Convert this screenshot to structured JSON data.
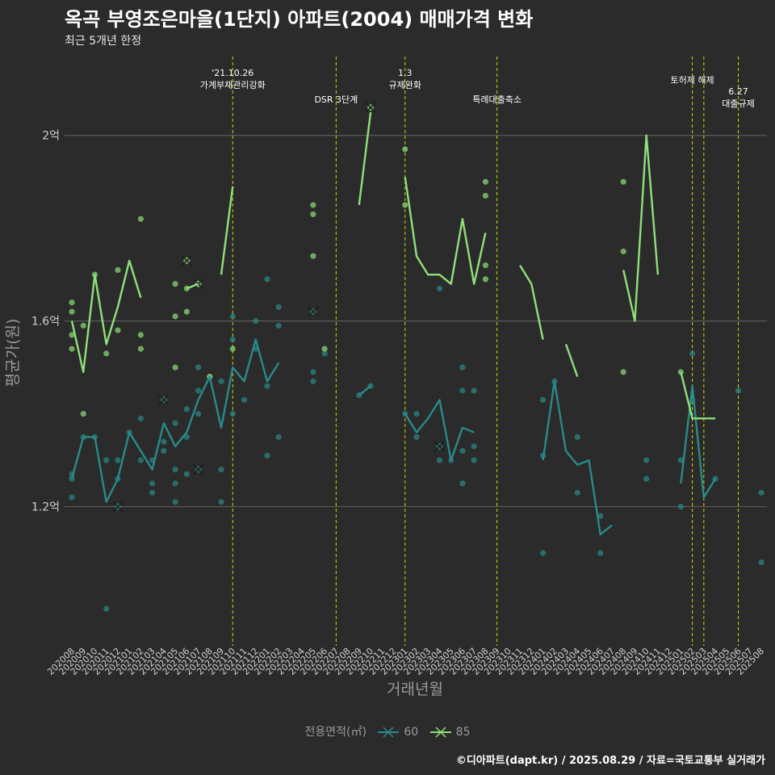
{
  "title": "옥곡 부영조은마을(1단지) 아파트(2004) 매매가격 변화",
  "subtitle": "최근 5개년 한정",
  "caption": "©디아파트(dapt.kr) / 2025.08.29 / 자료=국토교통부 실거래가",
  "colors": {
    "background": "#2b2b2b",
    "grid": "#5a5a5a",
    "event_line": "#d4d400",
    "s60": "#2a8a8a",
    "s85": "#8ee07a"
  },
  "chart_data": {
    "type": "line",
    "xlabel": "거래년월",
    "ylabel": "평균가(원)",
    "y_ticks": [
      {
        "value": 1.2,
        "label": "1.2억"
      },
      {
        "value": 1.6,
        "label": "1.6억"
      },
      {
        "value": 2.0,
        "label": "2억"
      }
    ],
    "ylim": [
      0.9,
      2.17
    ],
    "grid": true,
    "legend_title": "전용면적(㎡)",
    "legend_position": "bottom",
    "categories": [
      "202008",
      "202009",
      "202010",
      "202011",
      "202012",
      "202101",
      "202102",
      "202103",
      "202104",
      "202105",
      "202106",
      "202107",
      "202108",
      "202109",
      "202110",
      "202111",
      "202112",
      "202201",
      "202202",
      "202203",
      "202204",
      "202205",
      "202206",
      "202207",
      "202208",
      "202209",
      "202210",
      "202211",
      "202212",
      "202301",
      "202302",
      "202303",
      "202304",
      "202305",
      "202306",
      "202307",
      "202308",
      "202309",
      "202310",
      "202311",
      "202312",
      "202401",
      "202402",
      "202403",
      "202404",
      "202405",
      "202406",
      "202407",
      "202408",
      "202409",
      "202410",
      "202411",
      "202412",
      "202501",
      "202502",
      "202503",
      "202504",
      "202505",
      "202506",
      "202507",
      "202508"
    ],
    "events": [
      {
        "x": "202110",
        "label": "'21.10.26\n가계부채관리강화"
      },
      {
        "x": "202207",
        "label": "DSR 3단계"
      },
      {
        "x": "202301",
        "label": "1.3\n규제완화"
      },
      {
        "x": "202309",
        "label": "특례대출축소"
      },
      {
        "x": "202502",
        "label": "토허제 해제"
      },
      {
        "x": "202503",
        "label": ""
      },
      {
        "x": "202506",
        "label": "6.27\n대출규제"
      }
    ],
    "series": [
      {
        "name": "60",
        "line": [
          1.26,
          1.35,
          1.35,
          1.21,
          1.26,
          1.36,
          1.32,
          1.28,
          1.38,
          1.33,
          1.36,
          1.43,
          1.48,
          1.37,
          1.5,
          1.47,
          1.56,
          1.47,
          1.51,
          null,
          null,
          null,
          null,
          null,
          null,
          1.44,
          1.46,
          null,
          null,
          1.4,
          1.36,
          1.39,
          1.43,
          1.3,
          1.37,
          1.36,
          null,
          1.46,
          null,
          null,
          null,
          1.3,
          1.47,
          1.32,
          1.29,
          1.3,
          1.14,
          1.16,
          null,
          null,
          1.28,
          null,
          null,
          1.25,
          1.46,
          1.22,
          1.26,
          null,
          null,
          null,
          null
        ],
        "points": [
          {
            "x": "202008",
            "y": 1.27
          },
          {
            "x": "202008",
            "y": 1.26
          },
          {
            "x": "202008",
            "y": 1.22
          },
          {
            "x": "202009",
            "y": 1.35
          },
          {
            "x": "202010",
            "y": 1.35
          },
          {
            "x": "202011",
            "y": 0.98
          },
          {
            "x": "202011",
            "y": 1.3
          },
          {
            "x": "202012",
            "y": 1.3
          },
          {
            "x": "202012",
            "y": 1.26
          },
          {
            "x": "202101",
            "y": 1.36
          },
          {
            "x": "202102",
            "y": 1.39
          },
          {
            "x": "202102",
            "y": 1.3
          },
          {
            "x": "202103",
            "y": 1.23
          },
          {
            "x": "202103",
            "y": 1.25
          },
          {
            "x": "202103",
            "y": 1.3
          },
          {
            "x": "202104",
            "y": 1.34
          },
          {
            "x": "202104",
            "y": 1.32
          },
          {
            "x": "202105",
            "y": 1.21
          },
          {
            "x": "202105",
            "y": 1.25
          },
          {
            "x": "202105",
            "y": 1.28
          },
          {
            "x": "202105",
            "y": 1.38
          },
          {
            "x": "202106",
            "y": 1.27
          },
          {
            "x": "202106",
            "y": 1.35
          },
          {
            "x": "202106",
            "y": 1.41
          },
          {
            "x": "202107",
            "y": 1.45
          },
          {
            "x": "202107",
            "y": 1.4
          },
          {
            "x": "202107",
            "y": 1.5
          },
          {
            "x": "202108",
            "y": 1.48
          },
          {
            "x": "202109",
            "y": 1.21
          },
          {
            "x": "202109",
            "y": 1.28
          },
          {
            "x": "202109",
            "y": 1.47
          },
          {
            "x": "202110",
            "y": 1.4
          },
          {
            "x": "202110",
            "y": 1.56
          },
          {
            "x": "202110",
            "y": 1.61
          },
          {
            "x": "202111",
            "y": 1.43
          },
          {
            "x": "202112",
            "y": 1.6
          },
          {
            "x": "202112",
            "y": 1.54
          },
          {
            "x": "202201",
            "y": 1.46
          },
          {
            "x": "202201",
            "y": 1.31
          },
          {
            "x": "202201",
            "y": 1.69
          },
          {
            "x": "202202",
            "y": 1.35
          },
          {
            "x": "202202",
            "y": 1.59
          },
          {
            "x": "202202",
            "y": 1.63
          },
          {
            "x": "202205",
            "y": 1.47
          },
          {
            "x": "202205",
            "y": 1.49
          },
          {
            "x": "202206",
            "y": 1.53
          },
          {
            "x": "202209",
            "y": 1.44
          },
          {
            "x": "202210",
            "y": 1.46
          },
          {
            "x": "202301",
            "y": 1.4
          },
          {
            "x": "202302",
            "y": 1.35
          },
          {
            "x": "202302",
            "y": 1.4
          },
          {
            "x": "202304",
            "y": 1.3
          },
          {
            "x": "202304",
            "y": 1.67
          },
          {
            "x": "202305",
            "y": 1.3
          },
          {
            "x": "202306",
            "y": 1.5
          },
          {
            "x": "202306",
            "y": 1.45
          },
          {
            "x": "202306",
            "y": 1.32
          },
          {
            "x": "202306",
            "y": 1.25
          },
          {
            "x": "202307",
            "y": 1.45
          },
          {
            "x": "202307",
            "y": 1.33
          },
          {
            "x": "202307",
            "y": 1.3
          },
          {
            "x": "202401",
            "y": 1.31
          },
          {
            "x": "202401",
            "y": 1.43
          },
          {
            "x": "202401",
            "y": 1.1
          },
          {
            "x": "202402",
            "y": 1.47
          },
          {
            "x": "202404",
            "y": 1.35
          },
          {
            "x": "202404",
            "y": 1.23
          },
          {
            "x": "202406",
            "y": 1.18
          },
          {
            "x": "202406",
            "y": 1.1
          },
          {
            "x": "202410",
            "y": 1.3
          },
          {
            "x": "202410",
            "y": 1.26
          },
          {
            "x": "202501",
            "y": 1.3
          },
          {
            "x": "202501",
            "y": 1.2
          },
          {
            "x": "202502",
            "y": 1.53
          },
          {
            "x": "202502",
            "y": 1.43
          },
          {
            "x": "202504",
            "y": 1.26
          },
          {
            "x": "202506",
            "y": 1.45
          },
          {
            "x": "202508",
            "y": 1.23
          },
          {
            "x": "202508",
            "y": 1.08
          }
        ],
        "crosses": [
          {
            "x": "202012",
            "y": 1.2
          },
          {
            "x": "202104",
            "y": 1.43
          },
          {
            "x": "202107",
            "y": 1.28
          },
          {
            "x": "202205",
            "y": 1.62
          },
          {
            "x": "202304",
            "y": 1.33
          }
        ]
      },
      {
        "name": "85",
        "line": [
          1.6,
          1.49,
          1.7,
          1.55,
          1.63,
          1.73,
          1.65,
          null,
          1.56,
          null,
          1.67,
          1.68,
          null,
          1.7,
          1.89,
          null,
          null,
          1.88,
          null,
          1.86,
          null,
          1.81,
          null,
          1.8,
          null,
          1.85,
          2.05,
          null,
          null,
          1.91,
          1.74,
          1.7,
          1.7,
          1.68,
          1.82,
          1.68,
          1.79,
          null,
          null,
          1.72,
          1.68,
          1.56,
          null,
          1.55,
          1.48,
          null,
          null,
          null,
          1.71,
          1.6,
          2.0,
          1.7,
          null,
          1.49,
          1.39,
          1.39,
          1.39,
          null,
          1.48,
          null,
          1.38
        ],
        "points": [
          {
            "x": "202008",
            "y": 1.64
          },
          {
            "x": "202008",
            "y": 1.62
          },
          {
            "x": "202008",
            "y": 1.57
          },
          {
            "x": "202008",
            "y": 1.54
          },
          {
            "x": "202009",
            "y": 1.59
          },
          {
            "x": "202009",
            "y": 1.4
          },
          {
            "x": "202010",
            "y": 1.7
          },
          {
            "x": "202011",
            "y": 1.53
          },
          {
            "x": "202012",
            "y": 1.71
          },
          {
            "x": "202012",
            "y": 1.58
          },
          {
            "x": "202102",
            "y": 1.82
          },
          {
            "x": "202102",
            "y": 1.57
          },
          {
            "x": "202102",
            "y": 1.54
          },
          {
            "x": "202105",
            "y": 1.68
          },
          {
            "x": "202105",
            "y": 1.61
          },
          {
            "x": "202105",
            "y": 1.5
          },
          {
            "x": "202106",
            "y": 1.67
          },
          {
            "x": "202106",
            "y": 1.62
          },
          {
            "x": "202108",
            "y": 1.48
          },
          {
            "x": "202110",
            "y": 1.54
          },
          {
            "x": "202205",
            "y": 1.85
          },
          {
            "x": "202205",
            "y": 1.83
          },
          {
            "x": "202205",
            "y": 1.74
          },
          {
            "x": "202206",
            "y": 1.54
          },
          {
            "x": "202301",
            "y": 1.97
          },
          {
            "x": "202301",
            "y": 1.85
          },
          {
            "x": "202308",
            "y": 1.9
          },
          {
            "x": "202308",
            "y": 1.87
          },
          {
            "x": "202308",
            "y": 1.72
          },
          {
            "x": "202308",
            "y": 1.69
          },
          {
            "x": "202408",
            "y": 1.9
          },
          {
            "x": "202408",
            "y": 1.75
          },
          {
            "x": "202408",
            "y": 1.49
          },
          {
            "x": "202501",
            "y": 1.49
          }
        ],
        "crosses": [
          {
            "x": "202106",
            "y": 1.73
          },
          {
            "x": "202107",
            "y": 1.68
          },
          {
            "x": "202210",
            "y": 2.06
          }
        ]
      }
    ]
  }
}
